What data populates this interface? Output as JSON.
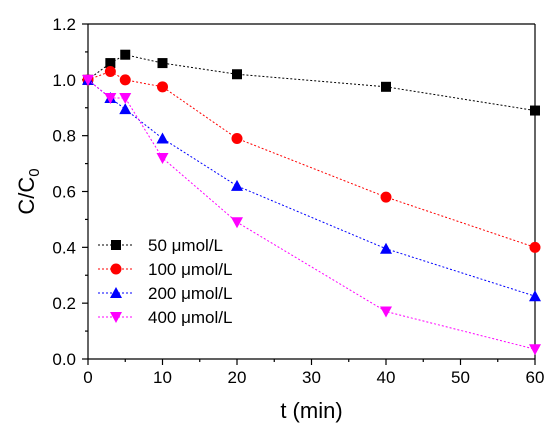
{
  "chart_data": {
    "type": "line",
    "xlabel": "t (min)",
    "ylabel_main": "C/C",
    "ylabel_sub": "0",
    "xlim": [
      0,
      60
    ],
    "ylim": [
      0.0,
      1.2
    ],
    "xticks": [
      0,
      10,
      20,
      30,
      40,
      50,
      60
    ],
    "yticks": [
      "0.0",
      "0.2",
      "0.4",
      "0.6",
      "0.8",
      "1.0",
      "1.2"
    ],
    "grid": false,
    "legend_position": "bottom-left",
    "series": [
      {
        "name": "50 μmol/L",
        "marker": "square",
        "color": "#000000",
        "x": [
          0,
          3,
          5,
          10,
          20,
          40,
          60
        ],
        "y": [
          1.0,
          1.06,
          1.09,
          1.06,
          1.02,
          0.975,
          0.89
        ]
      },
      {
        "name": "100 μmol/L",
        "marker": "circle",
        "color": "#ff0000",
        "x": [
          0,
          3,
          5,
          10,
          20,
          40,
          60
        ],
        "y": [
          1.0,
          1.03,
          1.0,
          0.975,
          0.79,
          0.58,
          0.4
        ]
      },
      {
        "name": "200 μmol/L",
        "marker": "triangle-up",
        "color": "#0000ff",
        "x": [
          0,
          3,
          5,
          10,
          20,
          40,
          60
        ],
        "y": [
          1.0,
          0.935,
          0.895,
          0.79,
          0.62,
          0.395,
          0.225
        ]
      },
      {
        "name": "400 μmol/L",
        "marker": "triangle-down",
        "color": "#ff00ff",
        "x": [
          0,
          3,
          5,
          10,
          20,
          40,
          60
        ],
        "y": [
          1.0,
          0.935,
          0.935,
          0.72,
          0.49,
          0.17,
          0.035
        ]
      }
    ]
  }
}
